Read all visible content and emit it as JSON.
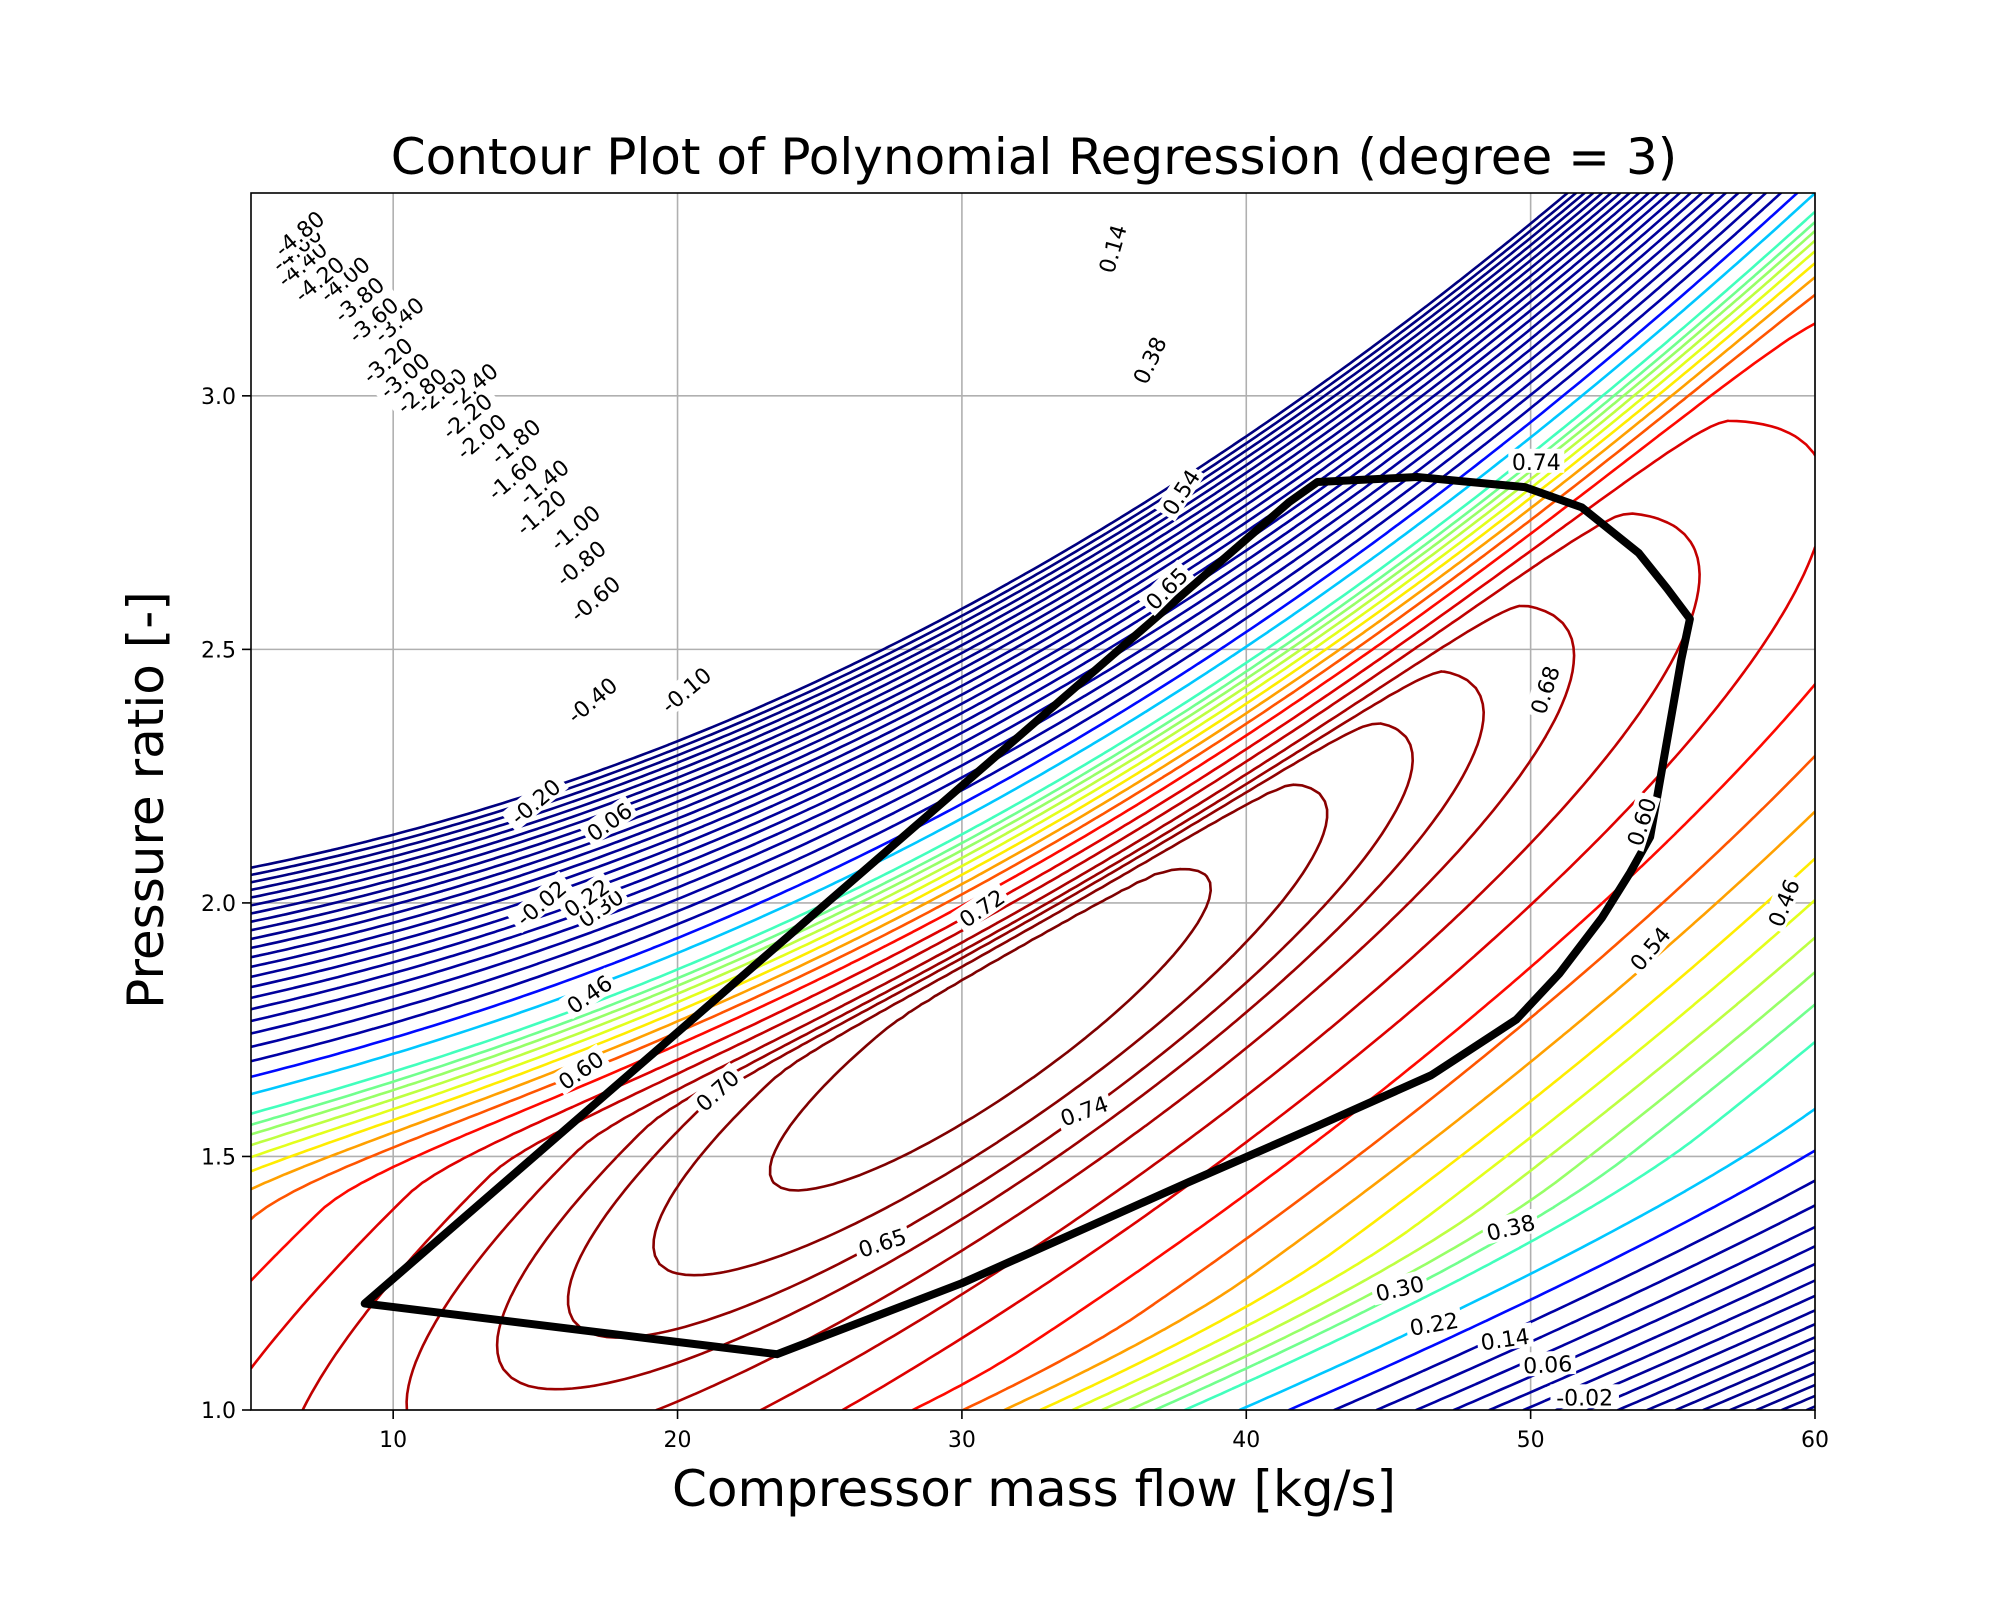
{
  "chart_data": {
    "type": "contour",
    "title": "Contour Plot of Polynomial Regression (degree = 3)",
    "xlabel": "Compressor mass flow [kg/s]",
    "ylabel": "Pressure ratio [-]",
    "xlim": [
      5,
      60
    ],
    "ylim": [
      1.0,
      3.4
    ],
    "xticks": [
      10,
      20,
      30,
      40,
      50,
      60
    ],
    "yticks": [
      1.0,
      1.5,
      2.0,
      2.5,
      3.0
    ],
    "xtick_labels": [
      "10",
      "20",
      "30",
      "40",
      "50",
      "60"
    ],
    "ytick_labels": [
      "1.0",
      "1.5",
      "2.0",
      "2.5",
      "3.0"
    ],
    "grid": true,
    "colormap": "jet",
    "color_stops": [
      "#00007f",
      "#0000ff",
      "#00ffff",
      "#7fff7f",
      "#ffff00",
      "#ff0000",
      "#7f0000"
    ],
    "vmin": -4.8,
    "vmax": 0.74,
    "contour_levels": [
      -4.8,
      -4.6,
      -4.4,
      -4.2,
      -4.0,
      -3.8,
      -3.6,
      -3.4,
      -3.2,
      -3.0,
      -2.8,
      -2.6,
      -2.4,
      -2.2,
      -2.0,
      -1.8,
      -1.6,
      -1.4,
      -1.2,
      -1.0,
      -0.8,
      -0.6,
      -0.4,
      -0.2,
      -0.1,
      -0.02,
      0.06,
      0.14,
      0.22,
      0.3,
      0.38,
      0.46,
      0.54,
      0.6,
      0.65,
      0.68,
      0.7,
      0.72,
      0.74
    ],
    "contour_labels": [
      {
        "text": "0.74",
        "x": 50.2,
        "y": 2.87,
        "rot": 0
      },
      {
        "text": "0.68",
        "x": 50.5,
        "y": 2.42,
        "rot": -72
      },
      {
        "text": "0.60",
        "x": 53.9,
        "y": 2.16,
        "rot": -72
      },
      {
        "text": "0.54",
        "x": 54.2,
        "y": 1.91,
        "rot": -50
      },
      {
        "text": "0.46",
        "x": 58.9,
        "y": 2.0,
        "rot": -68
      },
      {
        "text": "0.38",
        "x": 49.3,
        "y": 1.36,
        "rot": -14
      },
      {
        "text": "0.30",
        "x": 45.4,
        "y": 1.24,
        "rot": -13
      },
      {
        "text": "0.22",
        "x": 46.6,
        "y": 1.17,
        "rot": -10
      },
      {
        "text": "0.14",
        "x": 49.1,
        "y": 1.14,
        "rot": -8
      },
      {
        "text": "0.06",
        "x": 50.6,
        "y": 1.09,
        "rot": -3
      },
      {
        "text": "-0.02",
        "x": 51.9,
        "y": 1.025,
        "rot": 0
      },
      {
        "text": "0.65",
        "x": 27.2,
        "y": 1.33,
        "rot": -18
      },
      {
        "text": "0.74",
        "x": 34.3,
        "y": 1.59,
        "rot": -20
      },
      {
        "text": "0.70",
        "x": 21.4,
        "y": 1.63,
        "rot": -42
      },
      {
        "text": "0.72",
        "x": 30.7,
        "y": 1.99,
        "rot": -34
      },
      {
        "text": "0.65",
        "x": 37.2,
        "y": 2.62,
        "rot": -45
      },
      {
        "text": "0.54",
        "x": 37.7,
        "y": 2.81,
        "rot": -57
      },
      {
        "text": "0.38",
        "x": 36.6,
        "y": 3.07,
        "rot": -65
      },
      {
        "text": "0.14",
        "x": 35.3,
        "y": 3.29,
        "rot": -74
      },
      {
        "text": "0.60",
        "x": 16.6,
        "y": 1.67,
        "rot": -35
      },
      {
        "text": "0.46",
        "x": 16.9,
        "y": 1.82,
        "rot": -35
      },
      {
        "text": "0.30",
        "x": 17.3,
        "y": 1.99,
        "rot": -35
      },
      {
        "text": "0.22",
        "x": 16.8,
        "y": 2.01,
        "rot": -35
      },
      {
        "text": "0.06",
        "x": 17.6,
        "y": 2.16,
        "rot": -35
      },
      {
        "text": "-0.02",
        "x": 15.2,
        "y": 2.0,
        "rot": -40
      },
      {
        "text": "-0.10",
        "x": 20.3,
        "y": 2.42,
        "rot": -40
      },
      {
        "text": "-0.20",
        "x": 15.0,
        "y": 2.2,
        "rot": -40
      },
      {
        "text": "-0.40",
        "x": 17.0,
        "y": 2.4,
        "rot": -40
      },
      {
        "text": "-0.60",
        "x": 17.1,
        "y": 2.6,
        "rot": -40
      },
      {
        "text": "-0.80",
        "x": 16.6,
        "y": 2.67,
        "rot": -40
      },
      {
        "text": "-1.00",
        "x": 16.4,
        "y": 2.74,
        "rot": -40
      },
      {
        "text": "-1.20",
        "x": 15.2,
        "y": 2.77,
        "rot": -40
      },
      {
        "text": "-1.40",
        "x": 15.3,
        "y": 2.83,
        "rot": -40
      },
      {
        "text": "-1.60",
        "x": 14.2,
        "y": 2.84,
        "rot": -40
      },
      {
        "text": "-1.80",
        "x": 14.3,
        "y": 2.91,
        "rot": -40
      },
      {
        "text": "-2.00",
        "x": 13.1,
        "y": 2.92,
        "rot": -40
      },
      {
        "text": "-2.20",
        "x": 12.6,
        "y": 2.96,
        "rot": -40
      },
      {
        "text": "-2.40",
        "x": 12.8,
        "y": 3.02,
        "rot": -40
      },
      {
        "text": "-2.60",
        "x": 11.7,
        "y": 3.01,
        "rot": -40
      },
      {
        "text": "-2.80",
        "x": 11.0,
        "y": 3.01,
        "rot": -40
      },
      {
        "text": "-3.00",
        "x": 10.4,
        "y": 3.04,
        "rot": -40
      },
      {
        "text": "-3.20",
        "x": 9.8,
        "y": 3.07,
        "rot": -40
      },
      {
        "text": "-3.40",
        "x": 10.2,
        "y": 3.15,
        "rot": -40
      },
      {
        "text": "-3.60",
        "x": 9.3,
        "y": 3.15,
        "rot": -40
      },
      {
        "text": "-3.80",
        "x": 8.8,
        "y": 3.19,
        "rot": -40
      },
      {
        "text": "-4.00",
        "x": 8.3,
        "y": 3.23,
        "rot": -40
      },
      {
        "text": "-4.20",
        "x": 7.4,
        "y": 3.23,
        "rot": -40
      },
      {
        "text": "-4.40",
        "x": 6.8,
        "y": 3.26,
        "rot": -40
      },
      {
        "text": "-4.60",
        "x": 6.6,
        "y": 3.29,
        "rot": -40
      },
      {
        "text": "-4.80",
        "x": 6.7,
        "y": 3.32,
        "rot": -40
      }
    ],
    "boundary": {
      "color": "#000000",
      "points": [
        [
          9.0,
          1.21
        ],
        [
          23.5,
          1.11
        ],
        [
          30.0,
          1.25
        ],
        [
          38.0,
          1.45
        ],
        [
          42.5,
          1.56
        ],
        [
          46.5,
          1.66
        ],
        [
          49.5,
          1.77
        ],
        [
          51.0,
          1.86
        ],
        [
          52.5,
          1.97
        ],
        [
          53.5,
          2.06
        ],
        [
          54.2,
          2.13
        ],
        [
          55.3,
          2.48
        ],
        [
          55.6,
          2.56
        ],
        [
          54.8,
          2.62
        ],
        [
          53.8,
          2.69
        ],
        [
          51.8,
          2.78
        ],
        [
          49.8,
          2.82
        ],
        [
          46.0,
          2.84
        ],
        [
          42.5,
          2.83
        ],
        [
          41.5,
          2.79
        ],
        [
          9.0,
          1.21
        ]
      ]
    }
  }
}
